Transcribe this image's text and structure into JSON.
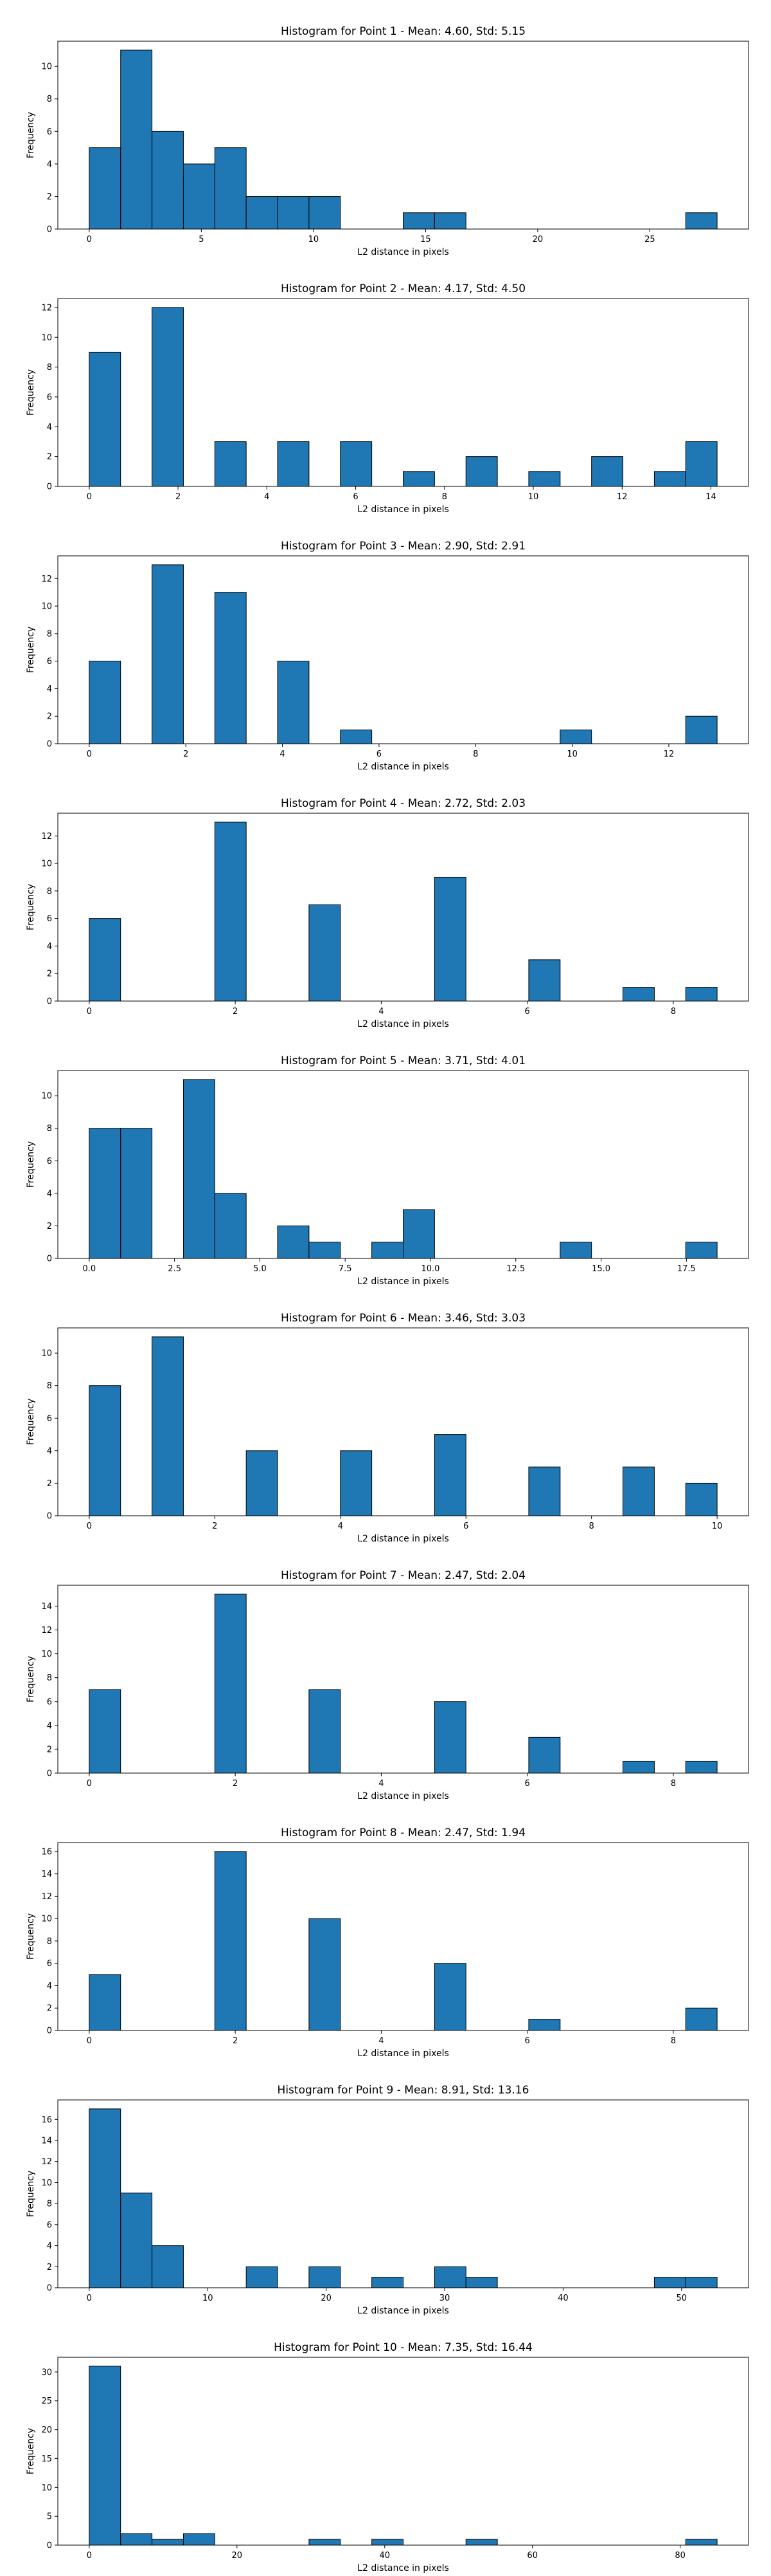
{
  "colors": {
    "bar_fill": "#1f77b4",
    "bar_edge": "#000000",
    "axis": "#000000"
  },
  "chart_data": [
    {
      "type": "bar",
      "title": "Histogram for Point 1 - Mean: 4.60, Std: 5.15",
      "xlabel": "L2 distance in pixels",
      "ylabel": "Frequency",
      "grid": false,
      "bin_range": [
        0.0,
        28.0
      ],
      "bins": 20,
      "values": [
        5,
        11,
        6,
        4,
        5,
        2,
        2,
        2,
        0,
        0,
        1,
        1,
        0,
        0,
        0,
        0,
        0,
        0,
        0,
        1
      ],
      "xlim": [
        -1.4,
        29.4
      ],
      "ylim": [
        0,
        11.55
      ],
      "xticks": [
        0,
        5,
        10,
        15,
        20,
        25
      ],
      "xtick_labels": [
        "0",
        "5",
        "10",
        "15",
        "20",
        "25"
      ],
      "yticks": [
        0,
        2,
        4,
        6,
        8,
        10
      ],
      "ytick_labels": [
        "0",
        "2",
        "4",
        "6",
        "8",
        "10"
      ]
    },
    {
      "type": "bar",
      "title": "Histogram for Point 2 - Mean: 4.17, Std: 4.50",
      "xlabel": "L2 distance in pixels",
      "ylabel": "Frequency",
      "grid": false,
      "bin_range": [
        0.0,
        14.14
      ],
      "bins": 20,
      "values": [
        9,
        0,
        12,
        0,
        3,
        0,
        3,
        0,
        3,
        0,
        1,
        0,
        2,
        0,
        1,
        0,
        2,
        0,
        1,
        3
      ],
      "xlim": [
        -0.707,
        14.847
      ],
      "ylim": [
        0,
        12.6
      ],
      "xticks": [
        0,
        2,
        4,
        6,
        8,
        10,
        12,
        14
      ],
      "xtick_labels": [
        "0",
        "2",
        "4",
        "6",
        "8",
        "10",
        "12",
        "14"
      ],
      "yticks": [
        0,
        2,
        4,
        6,
        8,
        10,
        12
      ],
      "ytick_labels": [
        "0",
        "2",
        "4",
        "6",
        "8",
        "10",
        "12"
      ]
    },
    {
      "type": "bar",
      "title": "Histogram for Point 3 - Mean: 2.90, Std: 2.91",
      "xlabel": "L2 distance in pixels",
      "ylabel": "Frequency",
      "grid": false,
      "bin_range": [
        0.0,
        13.0
      ],
      "bins": 20,
      "values": [
        6,
        0,
        13,
        0,
        11,
        0,
        6,
        0,
        1,
        0,
        0,
        0,
        0,
        0,
        0,
        1,
        0,
        0,
        0,
        2
      ],
      "xlim": [
        -0.65,
        13.65
      ],
      "ylim": [
        0,
        13.65
      ],
      "xticks": [
        0,
        2,
        4,
        6,
        8,
        10,
        12
      ],
      "xtick_labels": [
        "0",
        "2",
        "4",
        "6",
        "8",
        "10",
        "12"
      ],
      "yticks": [
        0,
        2,
        4,
        6,
        8,
        10,
        12
      ],
      "ytick_labels": [
        "0",
        "2",
        "4",
        "6",
        "8",
        "10",
        "12"
      ]
    },
    {
      "type": "bar",
      "title": "Histogram for Point 4 - Mean: 2.72, Std: 2.03",
      "xlabel": "L2 distance in pixels",
      "ylabel": "Frequency",
      "grid": false,
      "bin_range": [
        0.0,
        8.6
      ],
      "bins": 20,
      "values": [
        6,
        0,
        0,
        0,
        13,
        0,
        0,
        7,
        0,
        0,
        0,
        9,
        0,
        0,
        3,
        0,
        0,
        1,
        0,
        1
      ],
      "xlim": [
        -0.43,
        9.03
      ],
      "ylim": [
        0,
        13.65
      ],
      "xticks": [
        0,
        2,
        4,
        6,
        8
      ],
      "xtick_labels": [
        "0",
        "2",
        "4",
        "6",
        "8"
      ],
      "yticks": [
        0,
        2,
        4,
        6,
        8,
        10,
        12
      ],
      "ytick_labels": [
        "0",
        "2",
        "4",
        "6",
        "8",
        "10",
        "12"
      ]
    },
    {
      "type": "bar",
      "title": "Histogram for Point 5 - Mean: 3.71, Std: 4.01",
      "xlabel": "L2 distance in pixels",
      "ylabel": "Frequency",
      "grid": false,
      "bin_range": [
        0.0,
        18.4
      ],
      "bins": 20,
      "values": [
        8,
        8,
        0,
        11,
        4,
        0,
        2,
        1,
        0,
        1,
        3,
        0,
        0,
        0,
        0,
        1,
        0,
        0,
        0,
        1
      ],
      "xlim": [
        -0.92,
        19.32
      ],
      "ylim": [
        0,
        11.55
      ],
      "xticks": [
        0,
        2.5,
        5,
        7.5,
        10,
        12.5,
        15,
        17.5
      ],
      "xtick_labels": [
        "0.0",
        "2.5",
        "5.0",
        "7.5",
        "10.0",
        "12.5",
        "15.0",
        "17.5"
      ],
      "yticks": [
        0,
        2,
        4,
        6,
        8,
        10
      ],
      "ytick_labels": [
        "0",
        "2",
        "4",
        "6",
        "8",
        "10"
      ]
    },
    {
      "type": "bar",
      "title": "Histogram for Point 6 - Mean: 3.46, Std: 3.03",
      "xlabel": "L2 distance in pixels",
      "ylabel": "Frequency",
      "grid": false,
      "bin_range": [
        0.0,
        10.0
      ],
      "bins": 20,
      "values": [
        8,
        0,
        11,
        0,
        0,
        4,
        0,
        0,
        4,
        0,
        0,
        5,
        0,
        0,
        3,
        0,
        0,
        3,
        0,
        2
      ],
      "xlim": [
        -0.5,
        10.5
      ],
      "ylim": [
        0,
        11.55
      ],
      "xticks": [
        0,
        2,
        4,
        6,
        8,
        10
      ],
      "xtick_labels": [
        "0",
        "2",
        "4",
        "6",
        "8",
        "10"
      ],
      "yticks": [
        0,
        2,
        4,
        6,
        8,
        10
      ],
      "ytick_labels": [
        "0",
        "2",
        "4",
        "6",
        "8",
        "10"
      ]
    },
    {
      "type": "bar",
      "title": "Histogram for Point 7 - Mean: 2.47, Std: 2.04",
      "xlabel": "L2 distance in pixels",
      "ylabel": "Frequency",
      "grid": false,
      "bin_range": [
        0.0,
        8.6
      ],
      "bins": 20,
      "values": [
        7,
        0,
        0,
        0,
        15,
        0,
        0,
        7,
        0,
        0,
        0,
        6,
        0,
        0,
        3,
        0,
        0,
        1,
        0,
        1
      ],
      "xlim": [
        -0.43,
        9.03
      ],
      "ylim": [
        0,
        15.75
      ],
      "xticks": [
        0,
        2,
        4,
        6,
        8
      ],
      "xtick_labels": [
        "0",
        "2",
        "4",
        "6",
        "8"
      ],
      "yticks": [
        0,
        2,
        4,
        6,
        8,
        10,
        12,
        14
      ],
      "ytick_labels": [
        "0",
        "2",
        "4",
        "6",
        "8",
        "10",
        "12",
        "14"
      ]
    },
    {
      "type": "bar",
      "title": "Histogram for Point 8 - Mean: 2.47, Std: 1.94",
      "xlabel": "L2 distance in pixels",
      "ylabel": "Frequency",
      "grid": false,
      "bin_range": [
        0.0,
        8.6
      ],
      "bins": 20,
      "values": [
        5,
        0,
        0,
        0,
        16,
        0,
        0,
        10,
        0,
        0,
        0,
        6,
        0,
        0,
        1,
        0,
        0,
        0,
        0,
        2
      ],
      "xlim": [
        -0.43,
        9.03
      ],
      "ylim": [
        0,
        16.8
      ],
      "xticks": [
        0,
        2,
        4,
        6,
        8
      ],
      "xtick_labels": [
        "0",
        "2",
        "4",
        "6",
        "8"
      ],
      "yticks": [
        0,
        2,
        4,
        6,
        8,
        10,
        12,
        14,
        16
      ],
      "ytick_labels": [
        "0",
        "2",
        "4",
        "6",
        "8",
        "10",
        "12",
        "14",
        "16"
      ]
    },
    {
      "type": "bar",
      "title": "Histogram for Point 9 - Mean: 8.91, Std: 13.16",
      "xlabel": "L2 distance in pixels",
      "ylabel": "Frequency",
      "grid": false,
      "bin_range": [
        0.0,
        53.0
      ],
      "bins": 20,
      "values": [
        17,
        9,
        4,
        0,
        0,
        2,
        0,
        2,
        0,
        1,
        0,
        2,
        1,
        0,
        0,
        0,
        0,
        0,
        1,
        1
      ],
      "xlim": [
        -2.65,
        55.65
      ],
      "ylim": [
        0,
        17.85
      ],
      "xticks": [
        0,
        10,
        20,
        30,
        40,
        50
      ],
      "xtick_labels": [
        "0",
        "10",
        "20",
        "30",
        "40",
        "50"
      ],
      "yticks": [
        0,
        2,
        4,
        6,
        8,
        10,
        12,
        14,
        16
      ],
      "ytick_labels": [
        "0",
        "2",
        "4",
        "6",
        "8",
        "10",
        "12",
        "14",
        "16"
      ]
    },
    {
      "type": "bar",
      "title": "Histogram for Point 10 - Mean: 7.35, Std: 16.44",
      "xlabel": "L2 distance in pixels",
      "ylabel": "Frequency",
      "grid": false,
      "bin_range": [
        0.0,
        85.0
      ],
      "bins": 20,
      "values": [
        31,
        2,
        1,
        2,
        0,
        0,
        0,
        1,
        0,
        1,
        0,
        0,
        1,
        0,
        0,
        0,
        0,
        0,
        0,
        1
      ],
      "xlim": [
        -4.25,
        89.25
      ],
      "ylim": [
        0,
        32.55
      ],
      "xticks": [
        0,
        20,
        40,
        60,
        80
      ],
      "xtick_labels": [
        "0",
        "20",
        "40",
        "60",
        "80"
      ],
      "yticks": [
        0,
        5,
        10,
        15,
        20,
        25,
        30
      ],
      "ytick_labels": [
        "0",
        "5",
        "10",
        "15",
        "20",
        "25",
        "30"
      ]
    }
  ]
}
